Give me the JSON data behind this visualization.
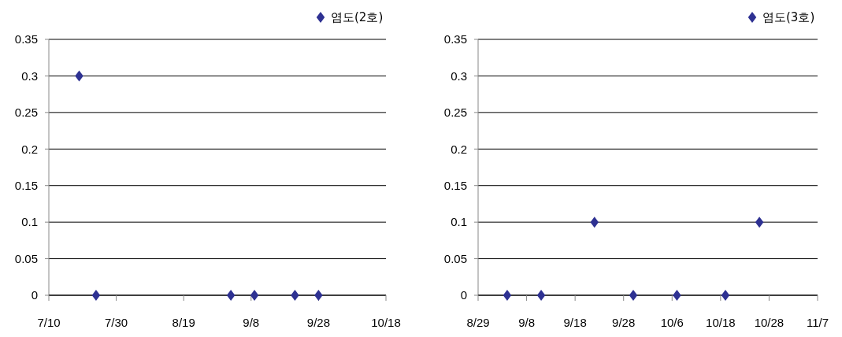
{
  "chart_data": [
    {
      "type": "scatter",
      "x": [
        "--07-19",
        "--07-24",
        "--09-02",
        "--09-09",
        "--09-21",
        "--09-28"
      ],
      "series": [
        {
          "name": "염도(2호)",
          "color": "#2e3192",
          "values": [
            0.3,
            0,
            0,
            0,
            0,
            0
          ]
        }
      ],
      "xlim": [
        "--07-10",
        "--10-18"
      ],
      "xticks": [
        {
          "value": "--07-10",
          "label": "7/10"
        },
        {
          "value": "--07-30",
          "label": "7/30"
        },
        {
          "value": "--08-19",
          "label": "8/19"
        },
        {
          "value": "--09-08",
          "label": "9/8"
        },
        {
          "value": "--09-28",
          "label": "9/28"
        },
        {
          "value": "--10-18",
          "label": "10/18"
        }
      ],
      "ylim": [
        0,
        0.35
      ],
      "yticks": [
        0,
        0.05,
        0.1,
        0.15,
        0.2,
        0.25,
        0.3,
        0.35
      ],
      "grid": "y",
      "legend": "top right",
      "marker": "diamond"
    },
    {
      "type": "scatter",
      "x": [
        "--09-04",
        "--09-11",
        "--09-22",
        "--09-30",
        "--10-09",
        "--10-19",
        "--10-26"
      ],
      "series": [
        {
          "name": "염도(3호)",
          "color": "#2e3192",
          "values": [
            0,
            0,
            0.1,
            0,
            0,
            0,
            0.1
          ]
        }
      ],
      "xlim": [
        "--08-29",
        "--11-07"
      ],
      "xticks": [
        {
          "value": "--08-29",
          "label": "8/29"
        },
        {
          "value": "--09-08",
          "label": "9/8"
        },
        {
          "value": "--09-18",
          "label": "9/18"
        },
        {
          "value": "--09-28",
          "label": "9/28"
        },
        {
          "value": "--10-08",
          "label": "10/6"
        },
        {
          "value": "--10-18",
          "label": "10/18"
        },
        {
          "value": "--10-28",
          "label": "10/28"
        },
        {
          "value": "--11-07",
          "label": "11/7"
        }
      ],
      "ylim": [
        0,
        0.35
      ],
      "yticks": [
        0,
        0.05,
        0.1,
        0.15,
        0.2,
        0.25,
        0.3,
        0.35
      ],
      "grid": "y",
      "legend": "top right",
      "marker": "diamond"
    }
  ]
}
